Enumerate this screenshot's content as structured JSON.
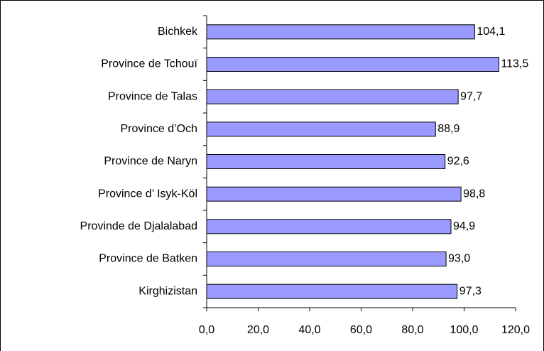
{
  "chart_data": {
    "type": "bar",
    "orientation": "horizontal",
    "categories": [
      "Bichkek",
      "Province de Tchouï",
      "Province de Talas",
      "Province d’Och",
      "Province de Naryn",
      "Province d’ Isyk-Köl",
      "Provinde de Djalalabad",
      "Province de Batken",
      "Kirghizistan"
    ],
    "values": [
      104.1,
      113.5,
      97.7,
      88.9,
      92.6,
      98.8,
      94.9,
      93.0,
      97.3
    ],
    "value_labels": [
      "104,1",
      "113,5",
      "97,7",
      "88,9",
      "92,6",
      "98,8",
      "94,9",
      "93,0",
      "97,3"
    ],
    "color": "#9999ff",
    "xlim": [
      0,
      120
    ],
    "xticks": [
      {
        "value": 0,
        "label": "0,0"
      },
      {
        "value": 20,
        "label": "20,0"
      },
      {
        "value": 40,
        "label": "40,0"
      },
      {
        "value": 60,
        "label": "60,0"
      },
      {
        "value": 80,
        "label": "80,0"
      },
      {
        "value": 100,
        "label": "100,0"
      },
      {
        "value": 120,
        "label": "120,0"
      }
    ],
    "grid": false
  }
}
